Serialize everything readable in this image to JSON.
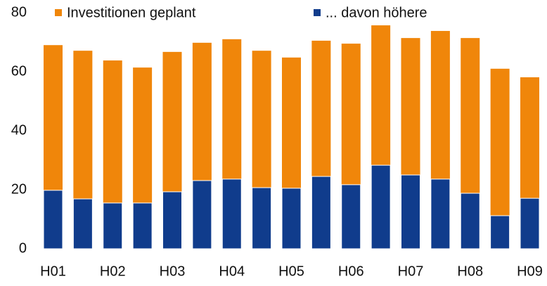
{
  "chart_data": {
    "type": "bar",
    "categories": [
      "H01",
      null,
      "H02",
      null,
      "H03",
      null,
      "H04",
      null,
      "H05",
      null,
      "H06",
      null,
      "H07",
      null,
      "H08",
      null,
      "H09"
    ],
    "series": [
      {
        "name": "Investitionen geplant",
        "color": "#f0860a",
        "values": [
          69.0,
          67.1,
          63.8,
          61.4,
          66.7,
          69.8,
          71.0,
          67.1,
          64.8,
          70.5,
          69.5,
          75.7,
          71.4,
          73.8,
          71.4,
          61.0,
          58.1
        ]
      },
      {
        "name": "... davon höhere",
        "color": "#103c8c",
        "values": [
          19.8,
          16.9,
          15.5,
          15.5,
          19.3,
          23.1,
          23.6,
          20.7,
          20.5,
          24.5,
          21.7,
          28.3,
          25.0,
          23.6,
          18.8,
          11.2,
          17.1
        ]
      }
    ],
    "ylim": [
      0,
      80
    ],
    "yticks": [
      0,
      20,
      40,
      60,
      80
    ],
    "grid": false
  }
}
